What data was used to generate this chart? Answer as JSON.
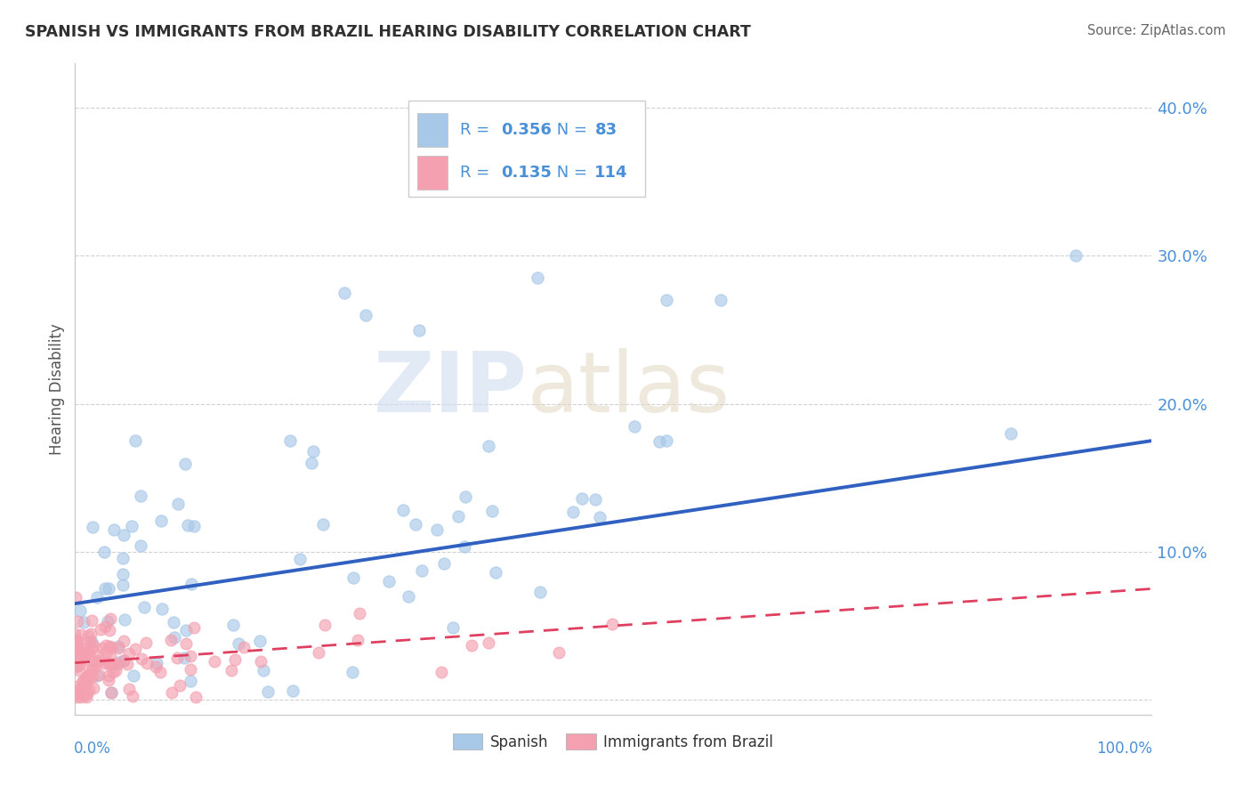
{
  "title": "SPANISH VS IMMIGRANTS FROM BRAZIL HEARING DISABILITY CORRELATION CHART",
  "source": "Source: ZipAtlas.com",
  "ylabel": "Hearing Disability",
  "ytick_vals": [
    0.0,
    0.1,
    0.2,
    0.3,
    0.4
  ],
  "ytick_labels": [
    "",
    "10.0%",
    "20.0%",
    "30.0%",
    "40.0%"
  ],
  "xlim": [
    0.0,
    1.0
  ],
  "ylim": [
    -0.01,
    0.43
  ],
  "legend1_R": "0.356",
  "legend1_N": "83",
  "legend2_R": "0.135",
  "legend2_N": "114",
  "color_spanish": "#a8c8e8",
  "color_brazil": "#f4a0b0",
  "color_trendline_spanish": "#3060c0",
  "color_trendline_brazil": "#e04060",
  "background_color": "#ffffff",
  "grid_color": "#cccccc",
  "title_color": "#303030",
  "axis_color": "#4a90d9",
  "label_color": "#555555",
  "trendline_spanish_start_y": 0.065,
  "trendline_spanish_end_y": 0.175,
  "trendline_brazil_start_y": 0.025,
  "trendline_brazil_end_y": 0.075
}
